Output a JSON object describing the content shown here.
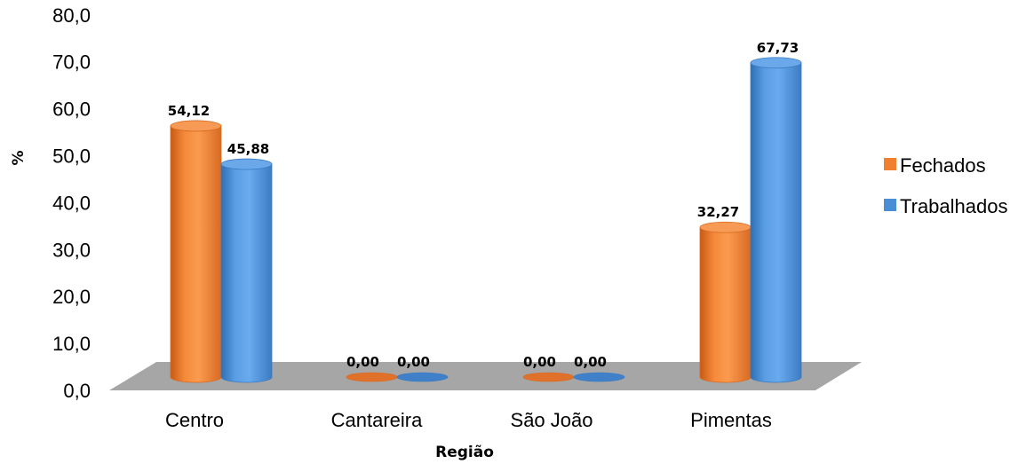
{
  "chart_data": {
    "type": "bar",
    "title": "",
    "xlabel": "Região",
    "ylabel": "%",
    "ylim": [
      0,
      80
    ],
    "yticks": [
      "0,0",
      "10,0",
      "20,0",
      "30,0",
      "40,0",
      "50,0",
      "60,0",
      "70,0",
      "80,0"
    ],
    "categories": [
      "Centro",
      "Cantareira",
      "São João",
      "Pimentas"
    ],
    "series": [
      {
        "name": "Fechados",
        "color": "#f07f2e",
        "values": [
          54.12,
          0.0,
          0.0,
          32.27
        ],
        "labels": [
          "54,12",
          "0,00",
          "0,00",
          "32,27"
        ]
      },
      {
        "name": "Trabalhados",
        "color": "#4a8fd6",
        "values": [
          45.88,
          0.0,
          0.0,
          67.73
        ],
        "labels": [
          "45,88",
          "0,00",
          "0,00",
          "67,73"
        ]
      }
    ],
    "legend": "right",
    "grid": false,
    "floor_color": "#a6a6a6"
  }
}
